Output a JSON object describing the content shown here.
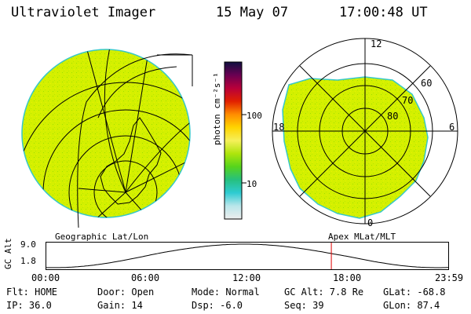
{
  "header": {
    "instrument": "Ultraviolet Imager",
    "date": "15 May 07",
    "time": "17:00:48 UT"
  },
  "colors": {
    "aurora_fill": "#d4f000",
    "limb_edge": "#36c8c8",
    "marker_line": "#e00000"
  },
  "left_panel": {
    "label": "Geographic Lat/Lon"
  },
  "right_panel": {
    "label": "Apex MLat/MLT",
    "mlt_labels": [
      "12",
      "18",
      "6",
      "0"
    ],
    "mlat_labels": [
      "60",
      "70",
      "80"
    ]
  },
  "colorbar": {
    "unit_label": "photon cm⁻²s⁻¹",
    "ticks": [
      "100",
      "10"
    ],
    "stops": [
      "#eeeeee",
      "#b9e6ea",
      "#2ecbd2",
      "#26c07e",
      "#56d41c",
      "#aee50c",
      "#f6f05a",
      "#ffd400",
      "#ff8c00",
      "#e12000",
      "#b8003a",
      "#6a0052",
      "#101040"
    ]
  },
  "orbit_plot": {
    "ylabel": "GC Alt",
    "ytick_top": "9.0",
    "ytick_bottom": "1.8",
    "xticks": [
      "00:00",
      "06:00",
      "12:00",
      "18:00",
      "23:59"
    ],
    "current_time": "17:00"
  },
  "footer": {
    "flt": "Flt: HOME",
    "ip": "IP: 36.0",
    "door": "Door: Open",
    "gain": "Gain: 14",
    "mode": "Mode: Normal",
    "dsp": "Dsp:   -6.0",
    "gc_alt": "GC Alt: 7.8 Re",
    "seq": "Seq: 39",
    "glat": "GLat: -68.8",
    "glon": "GLon:  87.4"
  }
}
